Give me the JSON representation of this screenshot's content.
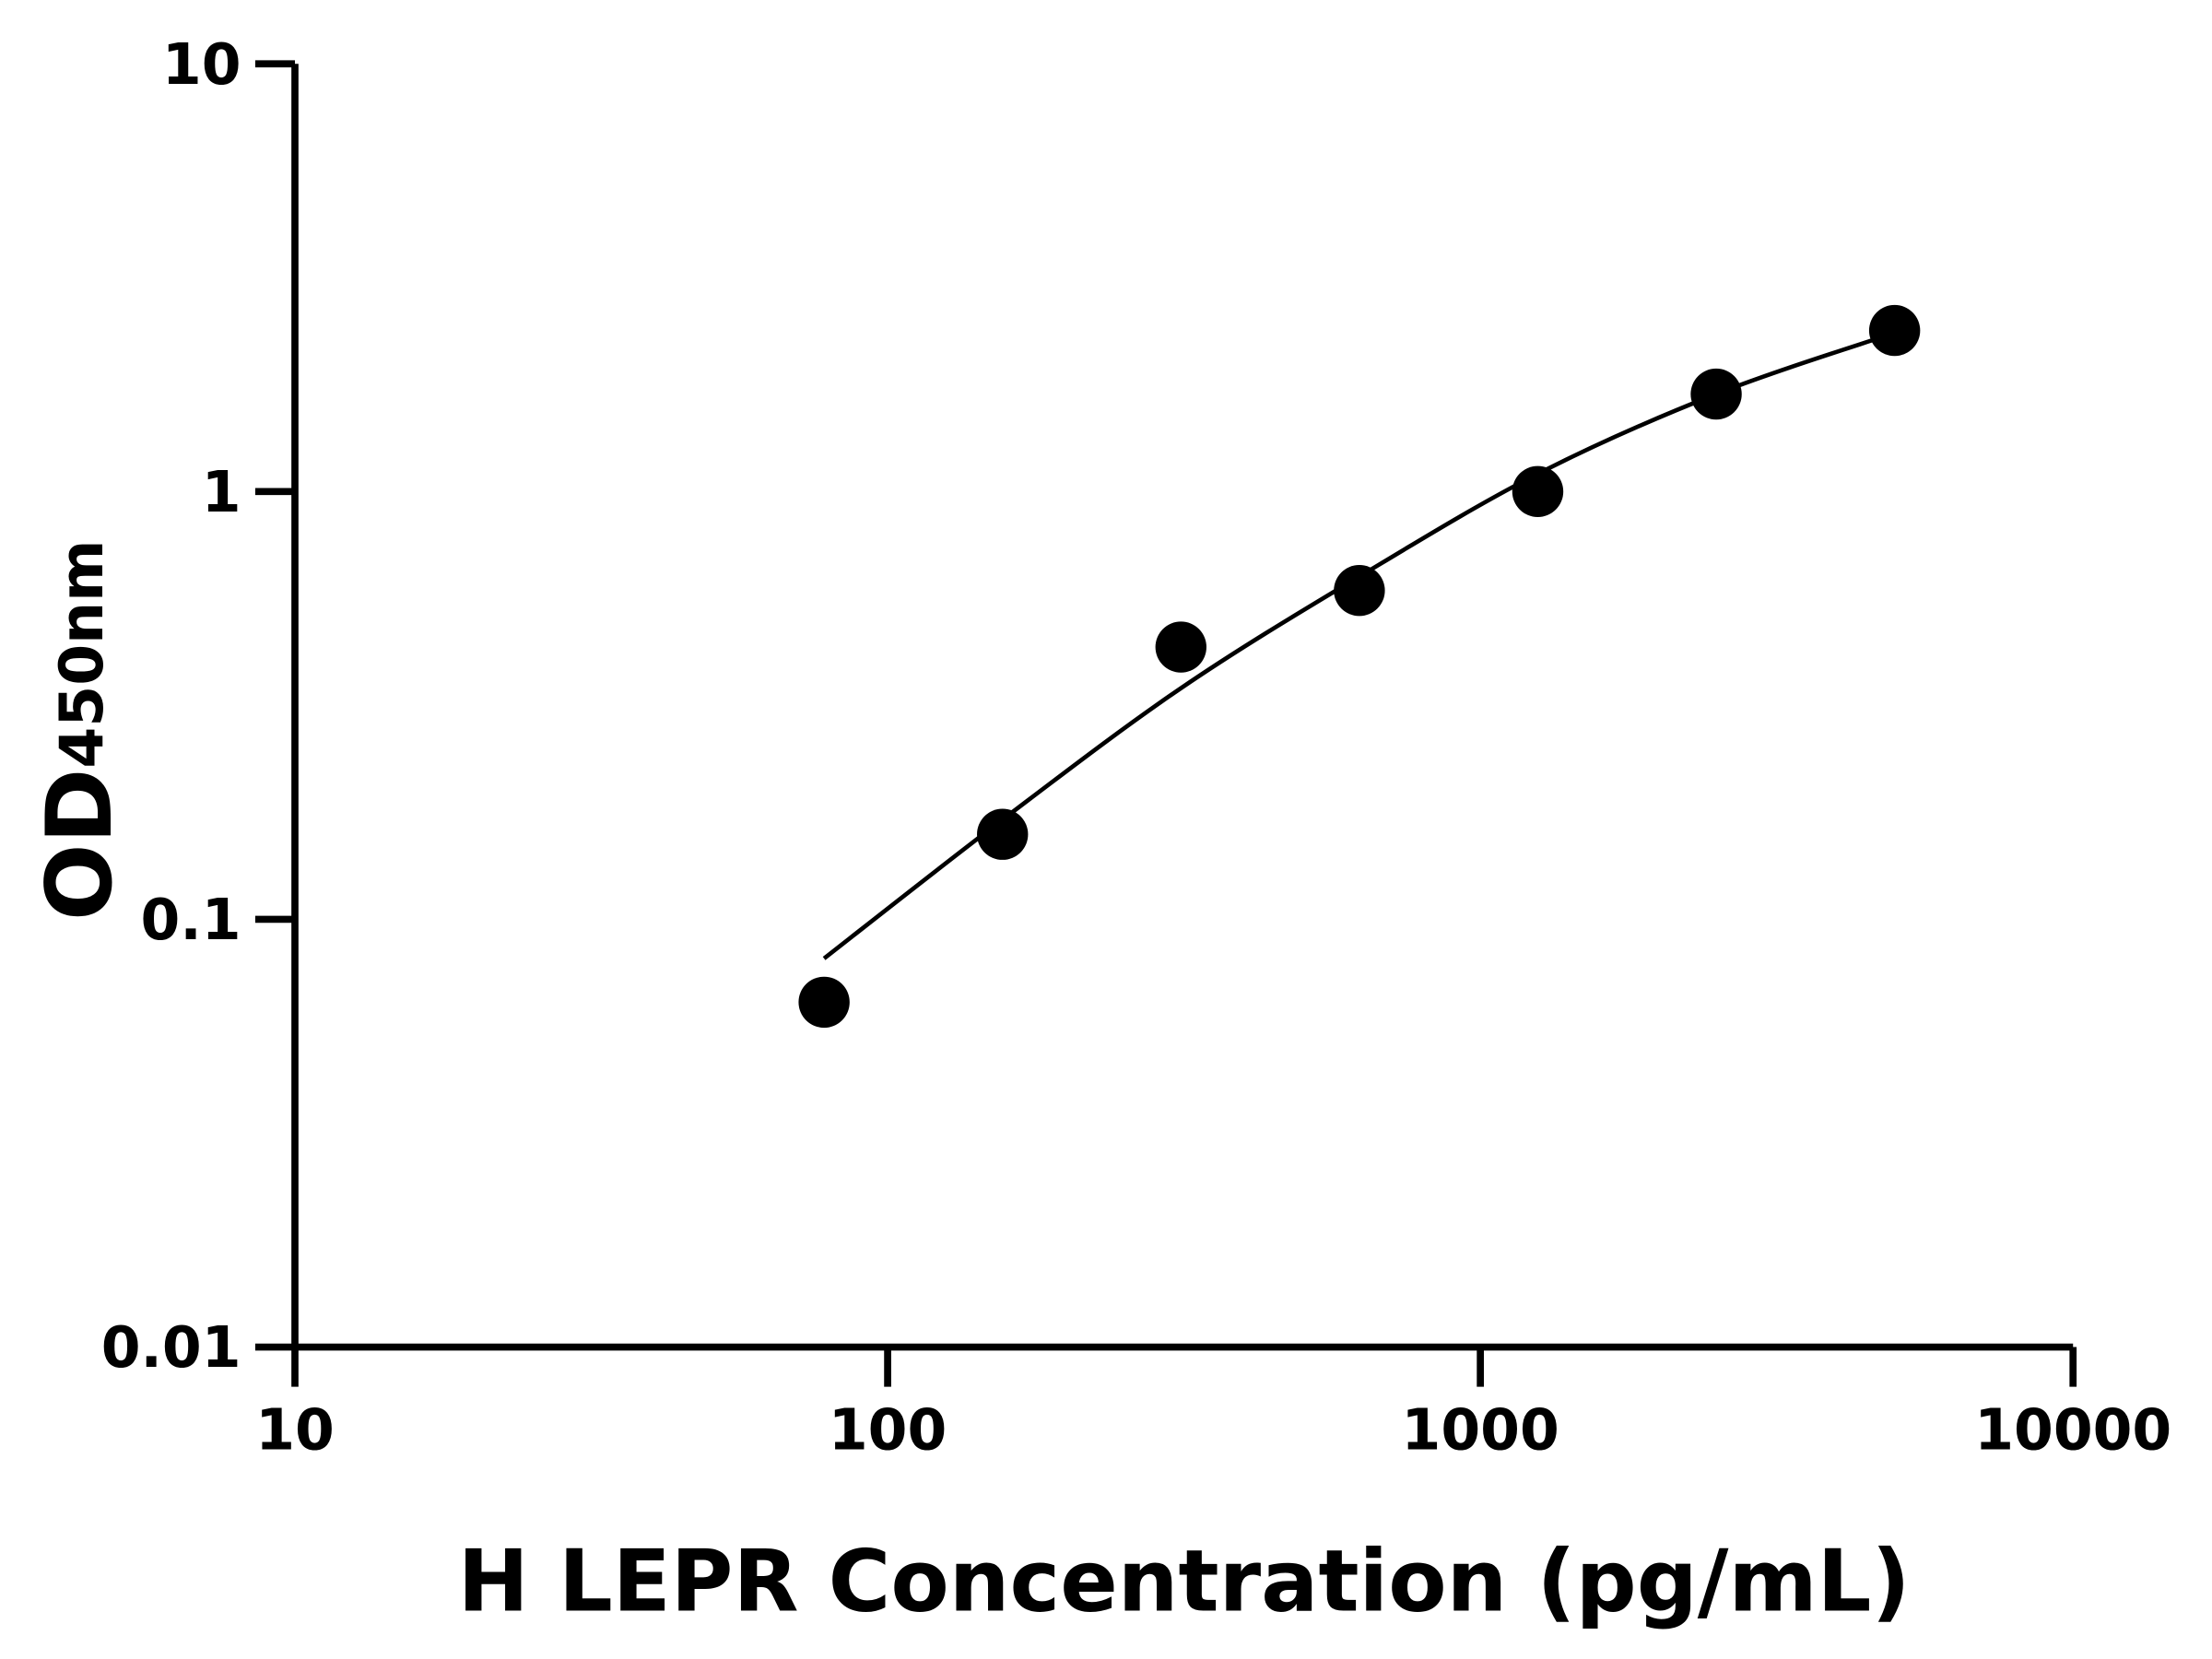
{
  "chart_data": {
    "type": "scatter",
    "title": "",
    "xlabel": "H LEPR Concentration (pg/mL)",
    "ylabel": {
      "main": "OD",
      "subscript": "450nm"
    },
    "xscale": "log",
    "yscale": "log",
    "xlim": [
      10,
      10000
    ],
    "ylim": [
      0.01,
      10
    ],
    "xticks": [
      "10",
      "100",
      "1000",
      "10000"
    ],
    "yticks": [
      "0.01",
      "0.1",
      "1",
      "10"
    ],
    "grid": false,
    "legend": "none",
    "points": {
      "x": [
        78.125,
        156.25,
        312.5,
        625,
        1250,
        2500,
        5000
      ],
      "y": [
        0.064,
        0.158,
        0.433,
        0.587,
        1.0,
        1.69,
        2.38
      ]
    },
    "fit_curve": {
      "x": [
        78.125,
        156.25,
        312.5,
        625,
        1250,
        2500,
        5000
      ],
      "y": [
        0.081,
        0.171,
        0.347,
        0.633,
        1.1,
        1.69,
        2.35
      ]
    },
    "colors": {
      "marker": "#000000",
      "line": "#000000",
      "axes": "#000000"
    }
  }
}
